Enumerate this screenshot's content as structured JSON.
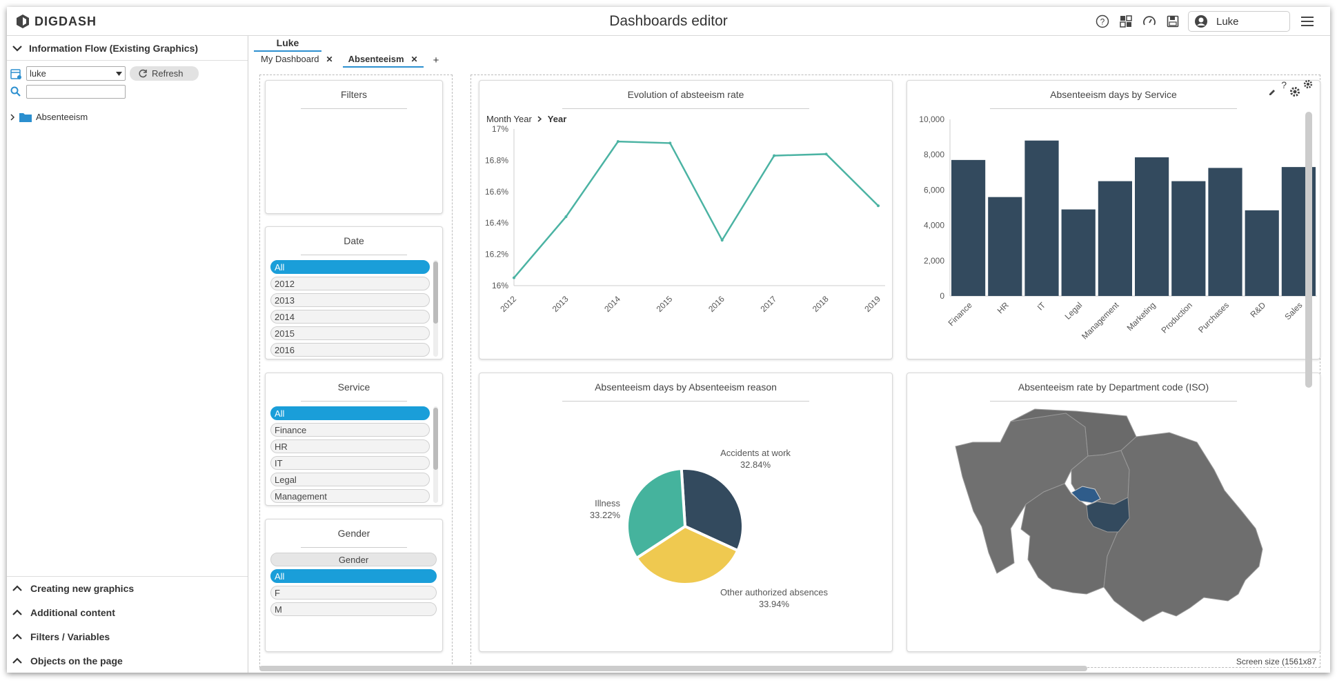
{
  "app": {
    "logo_text": "DIGDASH",
    "title": "Dashboards editor"
  },
  "header": {
    "user_name": "Luke"
  },
  "left_panel": {
    "section_title": "Information Flow (Existing Graphics)",
    "user_select": "luke",
    "refresh_label": "Refresh",
    "tree_item": "Absenteeism",
    "bottom_sections": [
      "Creating new graphics",
      "Additional content",
      "Filters / Variables",
      "Objects on the page"
    ]
  },
  "tabs": {
    "owner": "Luke",
    "items": [
      {
        "label": "My Dashboard",
        "active": false
      },
      {
        "label": "Absenteeism",
        "active": true
      }
    ],
    "add_label": "+"
  },
  "filters": {
    "panel_title": "Filters",
    "date": {
      "title": "Date",
      "items": [
        "All",
        "2012",
        "2013",
        "2014",
        "2015",
        "2016"
      ]
    },
    "service": {
      "title": "Service",
      "items": [
        "All",
        "Finance",
        "HR",
        "IT",
        "Legal",
        "Management"
      ]
    },
    "gender": {
      "title": "Gender",
      "header": "Gender",
      "items": [
        "All",
        "F",
        "M"
      ]
    }
  },
  "footer": {
    "screen_size": "Screen size (1561x87"
  },
  "colors": {
    "line": "#4bb3a3",
    "bar": "#334a5e",
    "pie_dark": "#334a5e",
    "pie_teal": "#45b39d",
    "pie_yellow": "#efc950",
    "map_grey": "#6e6e6e",
    "map_blue": "#2f5c8a",
    "selected": "#1a9ed9"
  },
  "chart_data": [
    {
      "type": "line",
      "title": "Evolution of absteeism rate",
      "breadcrumb": [
        "Month Year",
        "Year"
      ],
      "x": [
        "2012",
        "2013",
        "2014",
        "2015",
        "2016",
        "2017",
        "2018",
        "2019"
      ],
      "series": [
        {
          "values": [
            16.05,
            16.44,
            16.92,
            16.91,
            16.29,
            16.83,
            16.84,
            16.51
          ]
        }
      ],
      "y_ticks": [
        "16%",
        "16.2%",
        "16.4%",
        "16.6%",
        "16.8%",
        "17%"
      ],
      "ylim": [
        16,
        17
      ]
    },
    {
      "type": "bar",
      "title": "Absenteeism days by Service",
      "categories": [
        "Finance",
        "HR",
        "IT",
        "Legal",
        "Management",
        "Marketing",
        "Production",
        "Purchases",
        "R&D",
        "Sales"
      ],
      "values": [
        7700,
        5600,
        8800,
        4900,
        6500,
        7850,
        6500,
        7250,
        4850,
        7300
      ],
      "y_ticks": [
        "0",
        "2,000",
        "4,000",
        "6,000",
        "8,000",
        "10,000"
      ],
      "ylim": [
        0,
        10000
      ]
    },
    {
      "type": "pie",
      "title": "Absenteeism days by Absenteeism reason",
      "slices": [
        {
          "label": "Accidents at work",
          "value": 32.84,
          "display": "32.84%"
        },
        {
          "label": "Other authorized absences",
          "value": 33.94,
          "display": "33.94%"
        },
        {
          "label": "Illness",
          "value": 33.22,
          "display": "33.22%"
        }
      ]
    },
    {
      "type": "map",
      "title": "Absenteeism rate by Department code (ISO)"
    }
  ]
}
